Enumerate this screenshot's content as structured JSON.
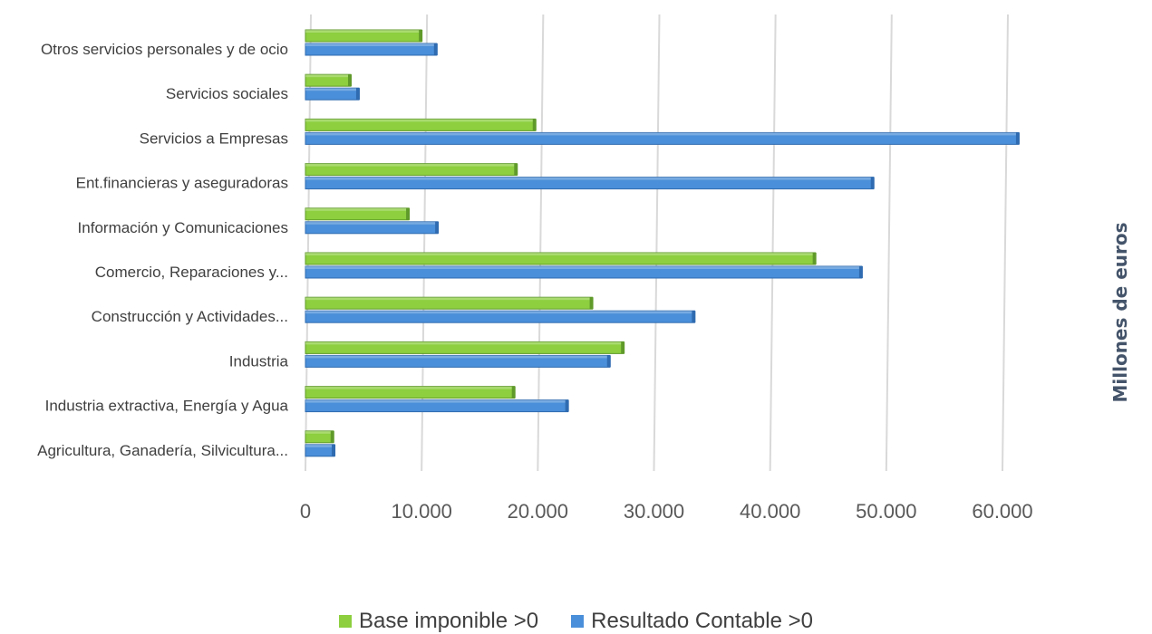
{
  "chart_data": {
    "type": "bar",
    "orientation": "horizontal",
    "categories": [
      "Otros servicios personales y de ocio",
      "Servicios sociales",
      "Servicios a Empresas",
      "Ent.financieras y aseguradoras",
      "Información y Comunicaciones",
      "Comercio, Reparaciones y...",
      "Construcción y Actividades...",
      "Industria",
      "Industria extractiva, Energía y Agua",
      "Agricultura, Ganadería, Silvicultura..."
    ],
    "series": [
      {
        "name": "Base imponible >0",
        "color": "#8dcf3f",
        "values": [
          10000,
          3900,
          19800,
          18200,
          8900,
          43900,
          24700,
          27400,
          18000,
          2400
        ]
      },
      {
        "name": "Resultado Contable >0",
        "color": "#4a8fd9",
        "values": [
          11300,
          4600,
          61400,
          48900,
          11400,
          47900,
          33500,
          26200,
          22600,
          2500
        ]
      }
    ],
    "xlim": [
      0,
      60000
    ],
    "xticks": [
      "0",
      "10.000",
      "20.000",
      "30.000",
      "40.000",
      "50.000",
      "60.000"
    ],
    "xtick_values": [
      0,
      10000,
      20000,
      30000,
      40000,
      50000,
      60000
    ],
    "ylabel": "Millones de euros",
    "xlabel": "",
    "title": "",
    "grid": true,
    "legend_position": "bottom"
  }
}
